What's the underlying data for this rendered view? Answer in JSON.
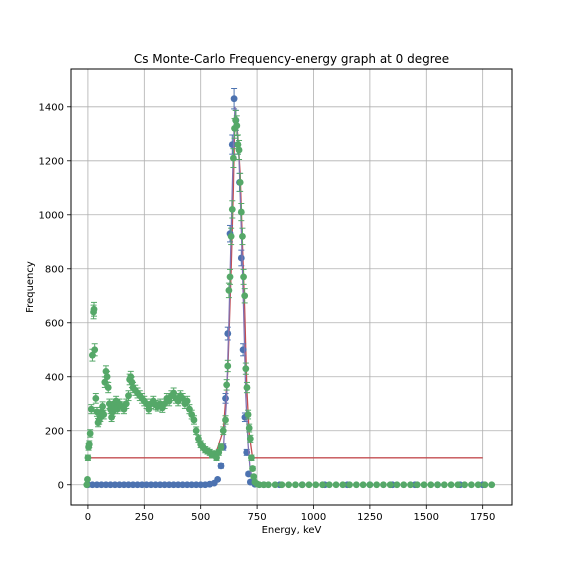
{
  "chart_data": {
    "type": "scatter",
    "title": "Cs Monte-Carlo Frequency-energy graph at 0 degree",
    "xlabel": "Energy, keV",
    "ylabel": "Frequency",
    "xlim": [
      -75,
      1880
    ],
    "ylim": [
      -75,
      1540
    ],
    "xticks": [
      0,
      250,
      500,
      750,
      1000,
      1250,
      1500,
      1750
    ],
    "yticks": [
      0,
      200,
      400,
      600,
      800,
      1000,
      1200,
      1400
    ],
    "grid": true,
    "colors": {
      "blue": "#4c72b0",
      "green": "#55a868",
      "red": "#c44e52",
      "purple": "#8172b2"
    },
    "series": [
      {
        "color": "#4c72b0",
        "style": "points-with-errorbars",
        "points": [
          [
            0,
            0
          ],
          [
            20,
            0
          ],
          [
            40,
            0
          ],
          [
            60,
            0
          ],
          [
            80,
            0
          ],
          [
            100,
            0
          ],
          [
            120,
            0
          ],
          [
            140,
            0
          ],
          [
            160,
            0
          ],
          [
            180,
            0
          ],
          [
            200,
            0
          ],
          [
            220,
            0
          ],
          [
            240,
            0
          ],
          [
            260,
            0
          ],
          [
            280,
            0
          ],
          [
            300,
            0
          ],
          [
            320,
            0
          ],
          [
            340,
            0
          ],
          [
            360,
            0
          ],
          [
            380,
            0
          ],
          [
            400,
            0
          ],
          [
            420,
            0
          ],
          [
            440,
            0
          ],
          [
            460,
            0
          ],
          [
            480,
            0
          ],
          [
            500,
            0
          ],
          [
            520,
            0
          ],
          [
            540,
            2
          ],
          [
            560,
            6
          ],
          [
            575,
            20
          ],
          [
            590,
            70
          ],
          [
            600,
            140
          ],
          [
            610,
            320
          ],
          [
            620,
            560
          ],
          [
            630,
            930
          ],
          [
            640,
            1260
          ],
          [
            648,
            1430
          ],
          [
            656,
            1350
          ],
          [
            664,
            1260
          ],
          [
            672,
            1120
          ],
          [
            680,
            840
          ],
          [
            688,
            500
          ],
          [
            696,
            250
          ],
          [
            704,
            120
          ],
          [
            712,
            40
          ],
          [
            720,
            10
          ],
          [
            740,
            2
          ],
          [
            780,
            0
          ],
          [
            850,
            0
          ],
          [
            950,
            0
          ],
          [
            1050,
            0
          ],
          [
            1150,
            0
          ],
          [
            1250,
            0
          ],
          [
            1350,
            0
          ],
          [
            1450,
            0
          ],
          [
            1550,
            0
          ],
          [
            1650,
            0
          ],
          [
            1750,
            0
          ]
        ]
      },
      {
        "color": "#55a868",
        "style": "points-with-errorbars",
        "points": [
          [
            -5,
            0
          ],
          [
            -2,
            20
          ],
          [
            0,
            100
          ],
          [
            3,
            140
          ],
          [
            6,
            150
          ],
          [
            10,
            190
          ],
          [
            15,
            280
          ],
          [
            20,
            480
          ],
          [
            25,
            640
          ],
          [
            27,
            650
          ],
          [
            30,
            500
          ],
          [
            35,
            320
          ],
          [
            40,
            270
          ],
          [
            45,
            230
          ],
          [
            50,
            240
          ],
          [
            55,
            250
          ],
          [
            60,
            270
          ],
          [
            65,
            290
          ],
          [
            70,
            260
          ],
          [
            75,
            380
          ],
          [
            80,
            420
          ],
          [
            85,
            400
          ],
          [
            90,
            360
          ],
          [
            95,
            300
          ],
          [
            100,
            280
          ],
          [
            105,
            250
          ],
          [
            110,
            270
          ],
          [
            115,
            300
          ],
          [
            120,
            290
          ],
          [
            125,
            310
          ],
          [
            130,
            280
          ],
          [
            140,
            300
          ],
          [
            150,
            290
          ],
          [
            160,
            280
          ],
          [
            170,
            300
          ],
          [
            180,
            330
          ],
          [
            185,
            390
          ],
          [
            190,
            400
          ],
          [
            195,
            380
          ],
          [
            200,
            360
          ],
          [
            210,
            350
          ],
          [
            220,
            340
          ],
          [
            230,
            330
          ],
          [
            240,
            320
          ],
          [
            250,
            310
          ],
          [
            260,
            300
          ],
          [
            270,
            280
          ],
          [
            280,
            300
          ],
          [
            290,
            310
          ],
          [
            300,
            295
          ],
          [
            310,
            290
          ],
          [
            320,
            300
          ],
          [
            330,
            285
          ],
          [
            340,
            300
          ],
          [
            350,
            320
          ],
          [
            360,
            310
          ],
          [
            370,
            330
          ],
          [
            380,
            340
          ],
          [
            390,
            320
          ],
          [
            400,
            310
          ],
          [
            410,
            330
          ],
          [
            420,
            320
          ],
          [
            430,
            300
          ],
          [
            440,
            310
          ],
          [
            450,
            280
          ],
          [
            460,
            260
          ],
          [
            470,
            240
          ],
          [
            480,
            200
          ],
          [
            490,
            170
          ],
          [
            500,
            150
          ],
          [
            510,
            140
          ],
          [
            520,
            130
          ],
          [
            530,
            125
          ],
          [
            540,
            120
          ],
          [
            550,
            110
          ],
          [
            560,
            115
          ],
          [
            570,
            100
          ],
          [
            580,
            120
          ],
          [
            590,
            140
          ],
          [
            600,
            200
          ],
          [
            610,
            240
          ],
          [
            615,
            370
          ],
          [
            620,
            440
          ],
          [
            625,
            720
          ],
          [
            630,
            770
          ],
          [
            635,
            920
          ],
          [
            640,
            1020
          ],
          [
            645,
            1210
          ],
          [
            650,
            1320
          ],
          [
            655,
            1350
          ],
          [
            660,
            1330
          ],
          [
            665,
            1260
          ],
          [
            670,
            1240
          ],
          [
            675,
            1120
          ],
          [
            680,
            1010
          ],
          [
            685,
            920
          ],
          [
            690,
            770
          ],
          [
            695,
            700
          ],
          [
            700,
            430
          ],
          [
            705,
            360
          ],
          [
            710,
            260
          ],
          [
            715,
            210
          ],
          [
            720,
            170
          ],
          [
            725,
            100
          ],
          [
            730,
            60
          ],
          [
            735,
            30
          ],
          [
            740,
            10
          ],
          [
            750,
            3
          ],
          [
            760,
            0
          ],
          [
            780,
            0
          ],
          [
            800,
            0
          ],
          [
            830,
            0
          ],
          [
            860,
            0
          ],
          [
            890,
            0
          ],
          [
            920,
            0
          ],
          [
            950,
            0
          ],
          [
            980,
            0
          ],
          [
            1010,
            0
          ],
          [
            1040,
            0
          ],
          [
            1070,
            0
          ],
          [
            1100,
            0
          ],
          [
            1130,
            0
          ],
          [
            1160,
            0
          ],
          [
            1190,
            0
          ],
          [
            1220,
            0
          ],
          [
            1250,
            0
          ],
          [
            1280,
            0
          ],
          [
            1310,
            0
          ],
          [
            1340,
            0
          ],
          [
            1370,
            0
          ],
          [
            1400,
            0
          ],
          [
            1430,
            0
          ],
          [
            1460,
            0
          ],
          [
            1490,
            0
          ],
          [
            1520,
            0
          ],
          [
            1550,
            0
          ],
          [
            1580,
            0
          ],
          [
            1610,
            0
          ],
          [
            1640,
            0
          ],
          [
            1670,
            0
          ],
          [
            1700,
            0
          ],
          [
            1730,
            0
          ],
          [
            1760,
            0
          ],
          [
            1790,
            0
          ]
        ]
      },
      {
        "color": "#c44e52",
        "style": "line",
        "points": [
          [
            0,
            100
          ],
          [
            560,
            100
          ],
          [
            600,
            200
          ],
          [
            620,
            420
          ],
          [
            635,
            800
          ],
          [
            645,
            1100
          ],
          [
            650,
            1300
          ],
          [
            658,
            1350
          ],
          [
            665,
            1290
          ],
          [
            675,
            1150
          ],
          [
            685,
            900
          ],
          [
            695,
            650
          ],
          [
            705,
            350
          ],
          [
            715,
            190
          ],
          [
            730,
            100
          ],
          [
            1750,
            100
          ]
        ]
      },
      {
        "color": "#8172b2",
        "style": "line",
        "points": [
          [
            600,
            130
          ],
          [
            615,
            320
          ],
          [
            625,
            600
          ],
          [
            635,
            940
          ],
          [
            645,
            1250
          ],
          [
            652,
            1400
          ],
          [
            660,
            1330
          ],
          [
            670,
            1200
          ],
          [
            680,
            950
          ],
          [
            690,
            650
          ],
          [
            700,
            330
          ],
          [
            710,
            150
          ],
          [
            720,
            50
          ],
          [
            735,
            5
          ]
        ]
      }
    ]
  }
}
